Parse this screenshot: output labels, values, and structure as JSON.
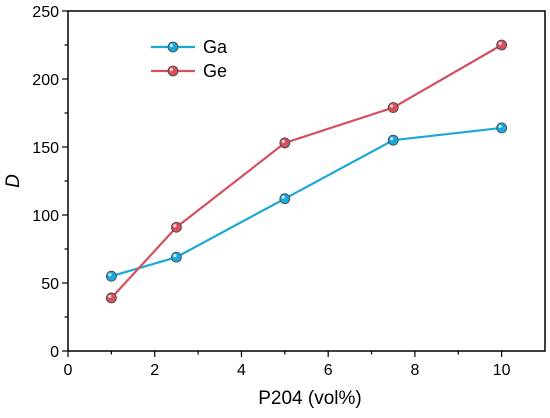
{
  "chart_data": {
    "type": "line",
    "xlabel": "P204 (vol%)",
    "ylabel": "D",
    "xlim": [
      0,
      11
    ],
    "ylim": [
      0,
      250
    ],
    "xticks": [
      0,
      2,
      4,
      6,
      8,
      10
    ],
    "yticks": [
      0,
      50,
      100,
      150,
      200,
      250
    ],
    "grid": false,
    "legend_position": "top-left",
    "series": [
      {
        "name": "Ga",
        "color": "#1ba8d8",
        "x": [
          1,
          2.5,
          5,
          7.5,
          10
        ],
        "y": [
          55,
          69,
          112,
          155,
          164
        ]
      },
      {
        "name": "Ge",
        "color": "#d5505f",
        "x": [
          1,
          2.5,
          5,
          7.5,
          10
        ],
        "y": [
          39,
          91,
          153,
          179,
          225
        ]
      }
    ]
  }
}
